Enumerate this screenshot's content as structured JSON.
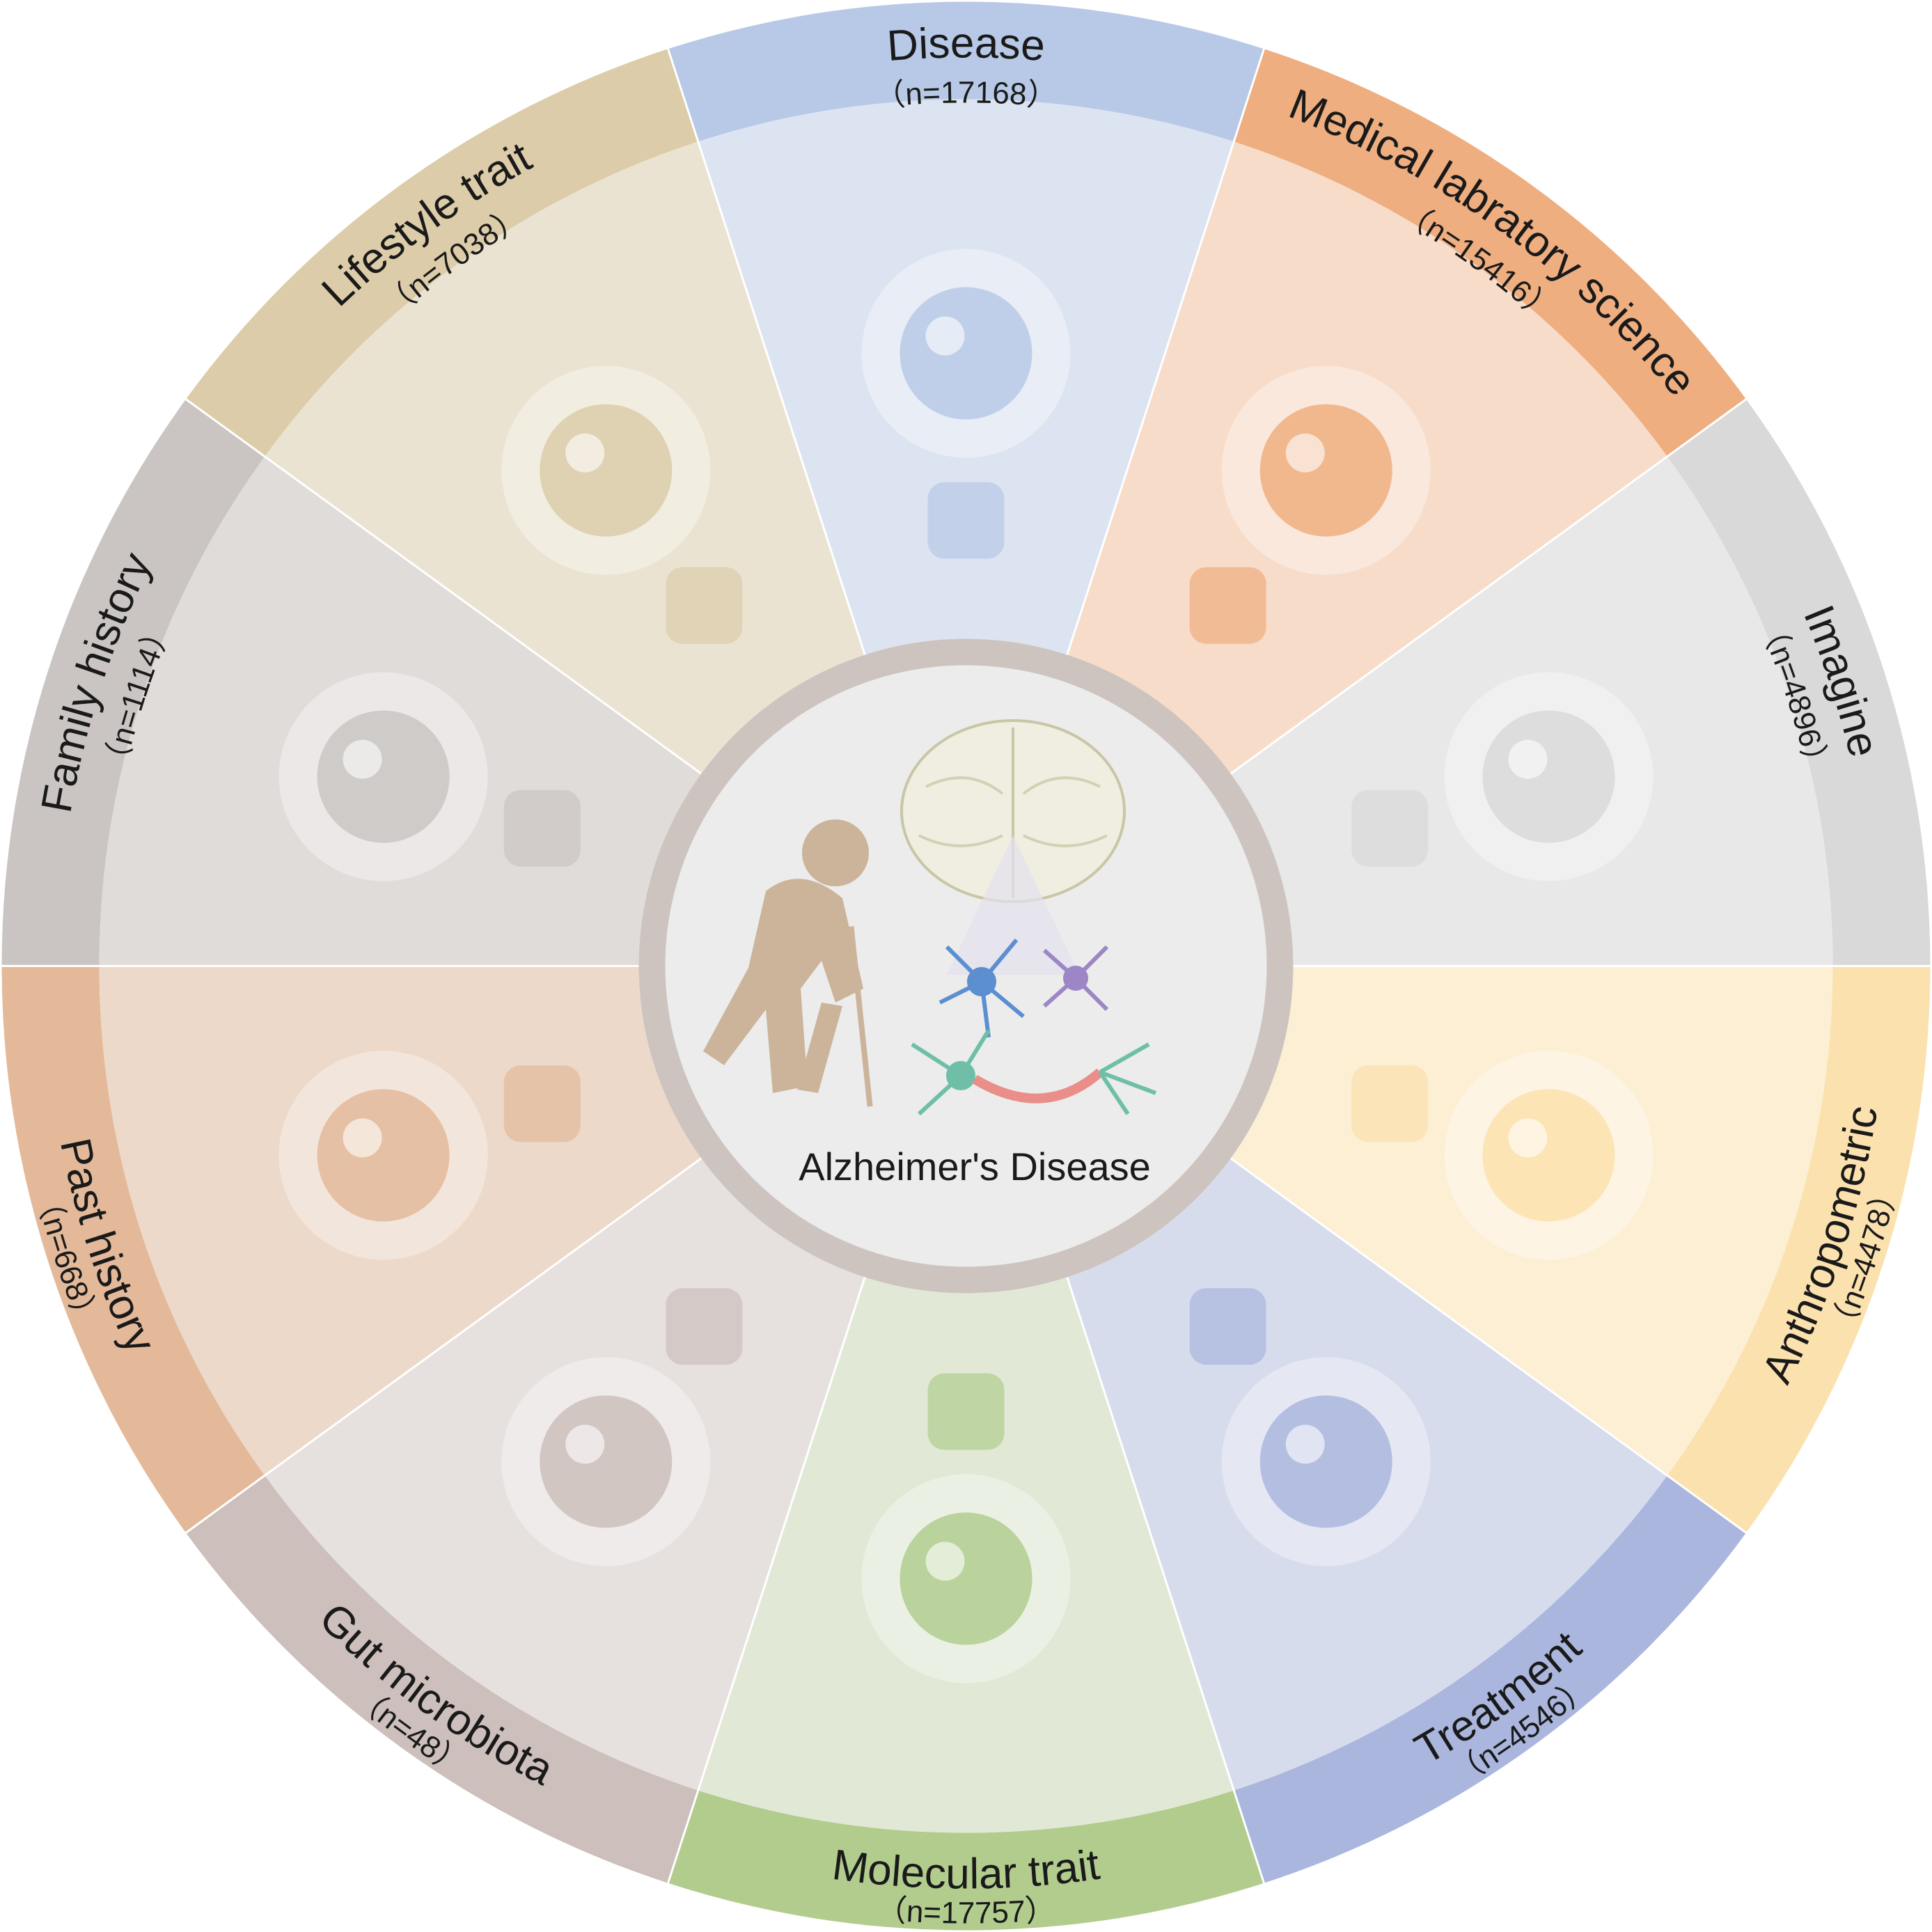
{
  "center": {
    "label": "Alzheimer's Disease"
  },
  "segments": [
    {
      "title": "Disease",
      "count": "（n=17168）",
      "band_color": "#b7c9e6",
      "fill_color": "#dce4f1",
      "icons": [
        "lungs-icon",
        "tumor-cells-icon",
        "pancreas-icon",
        "glucose-meter-icon",
        "intestine-icon"
      ]
    },
    {
      "title": "Medical labratory science",
      "count": "（n=15416）",
      "band_color": "#eeae7f",
      "fill_color": "#f7dcc9",
      "icons": [
        "blood-vessel-icon",
        "blood-cells-icon",
        "lab-analyzer-icon"
      ]
    },
    {
      "title": "Imagine",
      "count": "（n=4896）",
      "band_color": "#d9d9d9",
      "fill_color": "#e8e8e8",
      "icons": [
        "brain-icon",
        "mri-scan-icon"
      ]
    },
    {
      "title": "Anthropometric",
      "count": "（n=4478）",
      "band_color": "#fbe1ad",
      "fill_color": "#fcefd4",
      "icons": [
        "body-shapes-icon",
        "height-measure-icon",
        "spirometer-icon"
      ]
    },
    {
      "title": "Treatment",
      "count": "（n=4546）",
      "band_color": "#aab6dd",
      "fill_color": "#d7dced",
      "icons": [
        "hospital-bed-icon",
        "pill-icon",
        "scalpel-icon",
        "medicine-box-icon"
      ]
    },
    {
      "title": "Molecular trait",
      "count": "（n=17757）",
      "band_color": "#b2cc8e",
      "fill_color": "#e1e9d6",
      "icons": [
        "molecule-icon",
        "protein-structure-icon"
      ]
    },
    {
      "title": "Gut microbiota",
      "count": "（n=48）",
      "band_color": "#ccbfbc",
      "fill_color": "#e6e1df",
      "icons": [
        "bacteria-dish-icon"
      ]
    },
    {
      "title": "Past history",
      "count": "（n=668）",
      "band_color": "#e3b99a",
      "fill_color": "#ecd9ca",
      "icons": [
        "patient-pain-icon",
        "medical-record-icon"
      ]
    },
    {
      "title": "Family history",
      "count": "（n=1114）",
      "band_color": "#cac5c3",
      "fill_color": "#e0dcda",
      "icons": [
        "family-icon"
      ]
    },
    {
      "title": "Lifestyle trait",
      "count": "（n=7038）",
      "band_color": "#dccca9",
      "fill_color": "#ebe3d2",
      "icons": [
        "teaching-icon",
        "sports-icon",
        "computer-work-icon",
        "wine-icon"
      ]
    }
  ]
}
